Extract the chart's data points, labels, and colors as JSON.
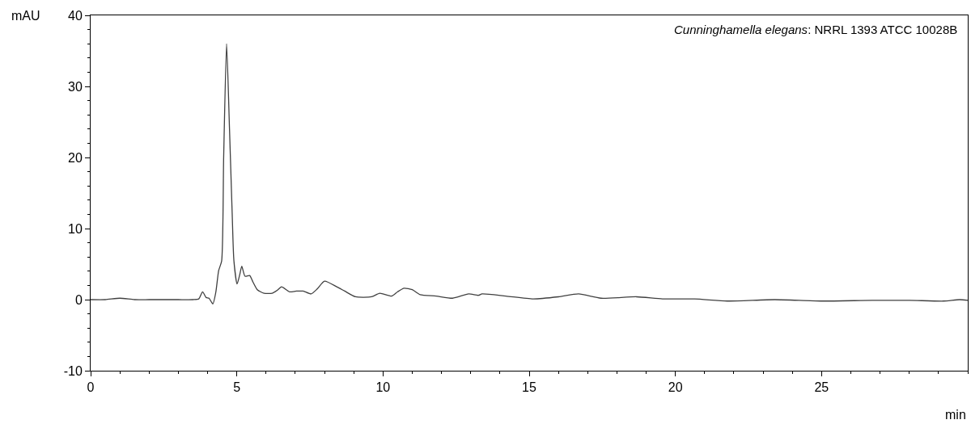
{
  "chart_data": {
    "type": "line",
    "title": "Cunninghamella elegans: NRRL 1393 ATCC 10028B",
    "xlabel": "min",
    "ylabel": "mAU",
    "series": [
      {
        "color": "#404040",
        "x": [
          0,
          0.5,
          1.0,
          1.5,
          2.0,
          2.5,
          3.0,
          3.5,
          3.7,
          3.83,
          3.95,
          4.05,
          4.18,
          4.28,
          4.38,
          4.48,
          4.55,
          4.65,
          4.75,
          4.84,
          4.9,
          5.01,
          5.1,
          5.17,
          5.28,
          5.44,
          5.55,
          5.7,
          5.93,
          6.21,
          6.38,
          6.53,
          6.8,
          7.04,
          7.27,
          7.54,
          7.75,
          8.0,
          8.42,
          8.69,
          9.06,
          9.61,
          9.89,
          10.3,
          10.5,
          10.72,
          11.0,
          11.27,
          11.82,
          12.38,
          12.93,
          13.26,
          13.39,
          14.2,
          15.14,
          16.0,
          16.69,
          17.46,
          18.67,
          19.56,
          20.66,
          21.77,
          23.4,
          24.97,
          26.74,
          28.0,
          29.17,
          29.72,
          30.0
        ],
        "values": [
          0.0,
          0.0,
          0.2,
          0.0,
          0.0,
          0.0,
          0.0,
          0.0,
          0.1,
          1.1,
          0.3,
          0.2,
          -0.6,
          1.0,
          4.1,
          5.4,
          20.0,
          36.0,
          24.0,
          12.3,
          5.5,
          2.2,
          3.5,
          4.7,
          3.3,
          3.4,
          2.5,
          1.4,
          0.9,
          0.9,
          1.3,
          1.8,
          1.1,
          1.2,
          1.2,
          0.8,
          1.5,
          2.6,
          1.8,
          1.2,
          0.4,
          0.4,
          0.9,
          0.5,
          1.1,
          1.6,
          1.4,
          0.7,
          0.5,
          0.2,
          0.8,
          0.6,
          0.8,
          0.5,
          0.1,
          0.4,
          0.8,
          0.2,
          0.4,
          0.1,
          0.1,
          -0.2,
          0.0,
          -0.2,
          -0.1,
          -0.1,
          -0.2,
          0.0,
          -0.1
        ]
      }
    ],
    "xlim": [
      0,
      30
    ],
    "xticks": [
      0,
      5,
      10,
      15,
      20,
      25
    ],
    "ylim": [
      -10,
      40
    ],
    "yticks": [
      -10,
      0,
      10,
      20,
      30,
      40
    ],
    "legend": false,
    "marker": "none",
    "line_style": "solid"
  }
}
